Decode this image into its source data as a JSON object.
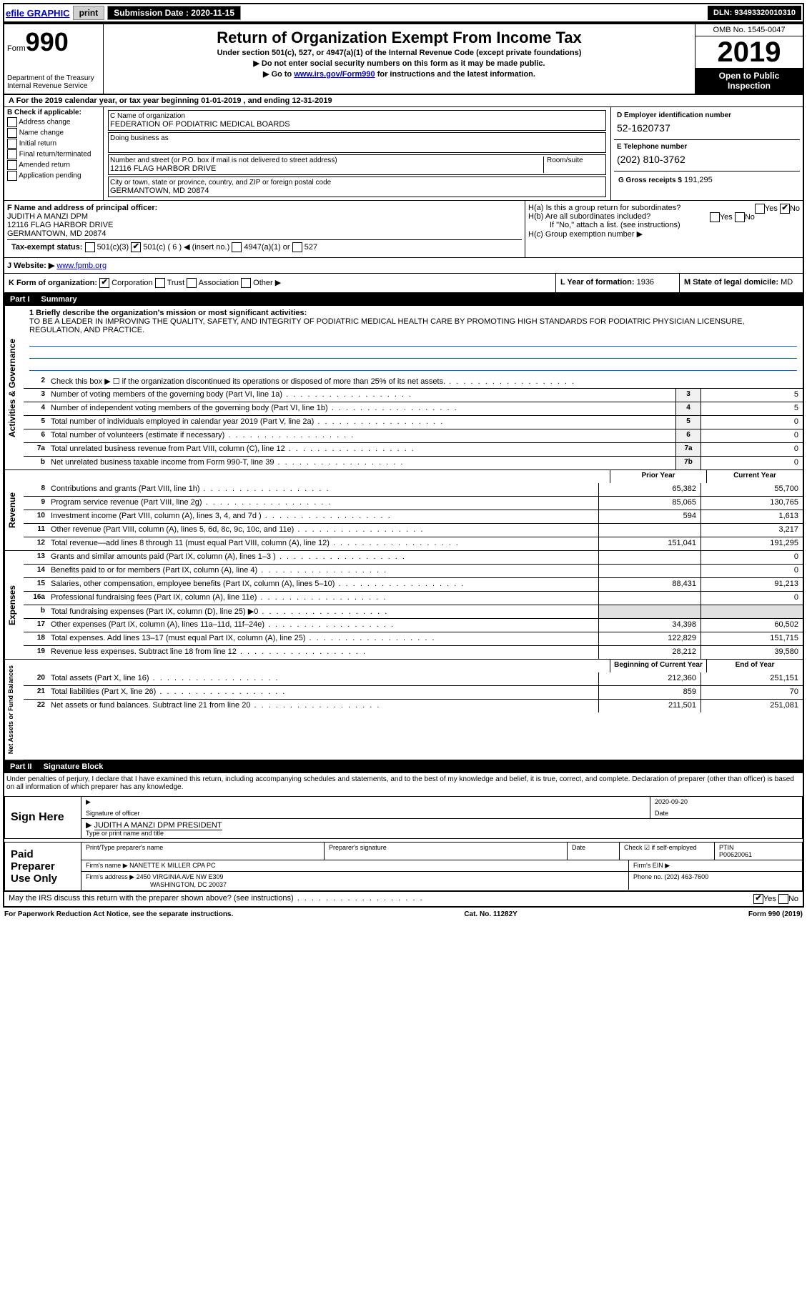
{
  "topbar": {
    "efile": "efile GRAPHIC",
    "print": "print",
    "submission_label": "Submission Date : 2020-11-15",
    "dln": "DLN: 93493320010310"
  },
  "header": {
    "form_prefix": "Form",
    "form_num": "990",
    "dept": "Department of the Treasury\nInternal Revenue Service",
    "title": "Return of Organization Exempt From Income Tax",
    "sub1": "Under section 501(c), 527, or 4947(a)(1) of the Internal Revenue Code (except private foundations)",
    "sub2": "Do not enter social security numbers on this form as it may be made public.",
    "sub3_pre": "Go to ",
    "sub3_link": "www.irs.gov/Form990",
    "sub3_post": " for instructions and the latest information.",
    "omb": "OMB No. 1545-0047",
    "year": "2019",
    "open": "Open to Public Inspection"
  },
  "lineA": "For the 2019 calendar year, or tax year beginning 01-01-2019   , and ending 12-31-2019",
  "boxB": {
    "title": "B Check if applicable:",
    "opts": [
      "Address change",
      "Name change",
      "Initial return",
      "Final return/terminated",
      "Amended return",
      "Application pending"
    ]
  },
  "boxC": {
    "name_label": "C Name of organization",
    "name": "FEDERATION OF PODIATRIC MEDICAL BOARDS",
    "dba_label": "Doing business as",
    "street_label": "Number and street (or P.O. box if mail is not delivered to street address)",
    "room_label": "Room/suite",
    "street": "12116 FLAG HARBOR DRIVE",
    "city_label": "City or town, state or province, country, and ZIP or foreign postal code",
    "city": "GERMANTOWN, MD  20874"
  },
  "boxD": {
    "label": "D Employer identification number",
    "val": "52-1620737"
  },
  "boxE": {
    "label": "E Telephone number",
    "val": "(202) 810-3762"
  },
  "boxG": {
    "label": "G Gross receipts $",
    "val": "191,295"
  },
  "boxF": {
    "label": "F  Name and address of principal officer:",
    "name": "JUDITH A MANZI DPM",
    "addr1": "12116 FLAG HARBOR DRIVE",
    "addr2": "GERMANTOWN, MD  20874"
  },
  "boxH": {
    "a": "H(a)  Is this a group return for subordinates?",
    "b": "H(b)  Are all subordinates included?",
    "b_note": "If \"No,\" attach a list. (see instructions)",
    "c": "H(c)  Group exemption number ▶",
    "yes": "Yes",
    "no": "No"
  },
  "boxI": {
    "label": "Tax-exempt status:",
    "o1": "501(c)(3)",
    "o2": "501(c) ( 6 ) ◀ (insert no.)",
    "o3": "4947(a)(1) or",
    "o4": "527"
  },
  "boxJ": {
    "label": "J   Website: ▶",
    "val": "www.fpmb.org"
  },
  "boxK": {
    "label": "K Form of organization:",
    "o1": "Corporation",
    "o2": "Trust",
    "o3": "Association",
    "o4": "Other ▶"
  },
  "boxL": {
    "label": "L Year of formation:",
    "val": "1936"
  },
  "boxM": {
    "label": "M State of legal domicile:",
    "val": "MD"
  },
  "part1": {
    "num": "Part I",
    "title": "Summary"
  },
  "mission": {
    "label": "1   Briefly describe the organization's mission or most significant activities:",
    "text": "TO BE A LEADER IN IMPROVING THE QUALITY, SAFETY, AND INTEGRITY OF PODIATRIC MEDICAL HEALTH CARE BY PROMOTING HIGH STANDARDS FOR PODIATRIC PHYSICIAN LICENSURE, REGULATION, AND PRACTICE."
  },
  "gov_lines": [
    {
      "n": "2",
      "t": "Check this box ▶ ☐  if the organization discontinued its operations or disposed of more than 25% of its net assets.",
      "box": "",
      "v": ""
    },
    {
      "n": "3",
      "t": "Number of voting members of the governing body (Part VI, line 1a)",
      "box": "3",
      "v": "5"
    },
    {
      "n": "4",
      "t": "Number of independent voting members of the governing body (Part VI, line 1b)",
      "box": "4",
      "v": "5"
    },
    {
      "n": "5",
      "t": "Total number of individuals employed in calendar year 2019 (Part V, line 2a)",
      "box": "5",
      "v": "0"
    },
    {
      "n": "6",
      "t": "Total number of volunteers (estimate if necessary)",
      "box": "6",
      "v": "0"
    },
    {
      "n": "7a",
      "t": "Total unrelated business revenue from Part VIII, column (C), line 12",
      "box": "7a",
      "v": "0"
    },
    {
      "n": "b",
      "t": "Net unrelated business taxable income from Form 990-T, line 39",
      "box": "7b",
      "v": "0"
    }
  ],
  "cols": {
    "prior": "Prior Year",
    "current": "Current Year"
  },
  "revenue": [
    {
      "n": "8",
      "t": "Contributions and grants (Part VIII, line 1h)",
      "p": "65,382",
      "c": "55,700"
    },
    {
      "n": "9",
      "t": "Program service revenue (Part VIII, line 2g)",
      "p": "85,065",
      "c": "130,765"
    },
    {
      "n": "10",
      "t": "Investment income (Part VIII, column (A), lines 3, 4, and 7d )",
      "p": "594",
      "c": "1,613"
    },
    {
      "n": "11",
      "t": "Other revenue (Part VIII, column (A), lines 5, 6d, 8c, 9c, 10c, and 11e)",
      "p": "",
      "c": "3,217"
    },
    {
      "n": "12",
      "t": "Total revenue—add lines 8 through 11 (must equal Part VIII, column (A), line 12)",
      "p": "151,041",
      "c": "191,295"
    }
  ],
  "expenses": [
    {
      "n": "13",
      "t": "Grants and similar amounts paid (Part IX, column (A), lines 1–3 )",
      "p": "",
      "c": "0"
    },
    {
      "n": "14",
      "t": "Benefits paid to or for members (Part IX, column (A), line 4)",
      "p": "",
      "c": "0"
    },
    {
      "n": "15",
      "t": "Salaries, other compensation, employee benefits (Part IX, column (A), lines 5–10)",
      "p": "88,431",
      "c": "91,213"
    },
    {
      "n": "16a",
      "t": "Professional fundraising fees (Part IX, column (A), line 11e)",
      "p": "",
      "c": "0"
    },
    {
      "n": "b",
      "t": "Total fundraising expenses (Part IX, column (D), line 25) ▶0",
      "p": "",
      "c": "",
      "shaded": true
    },
    {
      "n": "17",
      "t": "Other expenses (Part IX, column (A), lines 11a–11d, 11f–24e)",
      "p": "34,398",
      "c": "60,502"
    },
    {
      "n": "18",
      "t": "Total expenses. Add lines 13–17 (must equal Part IX, column (A), line 25)",
      "p": "122,829",
      "c": "151,715"
    },
    {
      "n": "19",
      "t": "Revenue less expenses. Subtract line 18 from line 12",
      "p": "28,212",
      "c": "39,580"
    }
  ],
  "cols2": {
    "beg": "Beginning of Current Year",
    "end": "End of Year"
  },
  "netassets": [
    {
      "n": "20",
      "t": "Total assets (Part X, line 16)",
      "p": "212,360",
      "c": "251,151"
    },
    {
      "n": "21",
      "t": "Total liabilities (Part X, line 26)",
      "p": "859",
      "c": "70"
    },
    {
      "n": "22",
      "t": "Net assets or fund balances. Subtract line 21 from line 20",
      "p": "211,501",
      "c": "251,081"
    }
  ],
  "part2": {
    "num": "Part II",
    "title": "Signature Block"
  },
  "penalty": "Under penalties of perjury, I declare that I have examined this return, including accompanying schedules and statements, and to the best of my knowledge and belief, it is true, correct, and complete. Declaration of preparer (other than officer) is based on all information of which preparer has any knowledge.",
  "sign": {
    "here": "Sign Here",
    "sig_officer": "Signature of officer",
    "date": "Date",
    "date_val": "2020-09-20",
    "name": "JUDITH A MANZI DPM  PRESIDENT",
    "name_label": "Type or print name and title"
  },
  "paid": {
    "title": "Paid Preparer Use Only",
    "c1": "Print/Type preparer's name",
    "c2": "Preparer's signature",
    "c3": "Date",
    "c4": "Check ☑ if self-employed",
    "c5_label": "PTIN",
    "c5": "P00620061",
    "firm_label": "Firm's name   ▶",
    "firm": "NANETTE K MILLER CPA PC",
    "ein_label": "Firm's EIN ▶",
    "addr_label": "Firm's address ▶",
    "addr1": "2450 VIRGINIA AVE NW E309",
    "addr2": "WASHINGTON, DC  20037",
    "phone_label": "Phone no.",
    "phone": "(202) 463-7600"
  },
  "discuss": {
    "text": "May the IRS discuss this return with the preparer shown above? (see instructions)",
    "yes": "Yes",
    "no": "No"
  },
  "footer": {
    "left": "For Paperwork Reduction Act Notice, see the separate instructions.",
    "mid": "Cat. No. 11282Y",
    "right": "Form 990 (2019)"
  },
  "side_labels": {
    "gov": "Activities & Governance",
    "rev": "Revenue",
    "exp": "Expenses",
    "net": "Net Assets or Fund Balances"
  }
}
